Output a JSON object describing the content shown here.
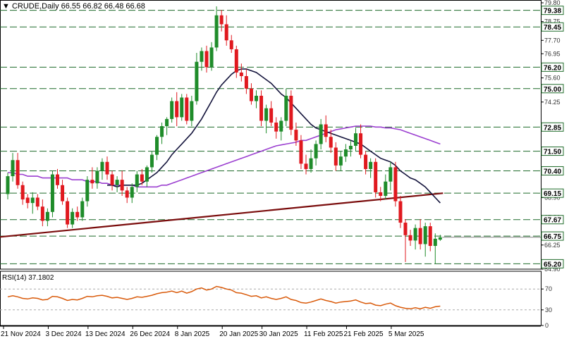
{
  "header": {
    "arrow": "▼",
    "symbol": "CRUDE,Daily",
    "ohlc": "66.55 66.82 66.48 66.68"
  },
  "rsi_header": {
    "label": "RSI(14) 37.1802"
  },
  "chart_data": [
    {
      "type": "candlestick",
      "symbol": "CRUDE",
      "timeframe": "Daily",
      "open": 66.55,
      "high": 66.82,
      "low": 66.48,
      "close": 66.68,
      "ylim": [
        64.9,
        79.8
      ],
      "y_tick_labels": [
        79.8,
        78.75,
        77.7,
        76.95,
        75.6,
        74.25,
        72.85,
        71.55,
        70.4,
        68.9,
        67.8,
        66.25,
        64.9
      ],
      "x_tick_labels": [
        "21 Nov 2024",
        "3 Dec 2024",
        "13 Dec 2024",
        "26 Dec 2024",
        "8 Jan 2025",
        "20 Jan 2025",
        "30 Jan 2025",
        "11 Feb 2025",
        "21 Feb 2025",
        "5 Mar 2025"
      ],
      "level_labels": [
        "79.38",
        "78.45",
        "76.20",
        "75.00",
        "72.85",
        "71.50",
        "70.40",
        "69.15",
        "67.67",
        "66.75",
        "65.20"
      ],
      "colors": {
        "up": "#1f8c2a",
        "down": "#e0191f",
        "sma_fast": "#14143c",
        "sma_slow": "#9b3fd0",
        "trendline": "#7a0c0c",
        "level": "#1f6b2a"
      },
      "trendline": {
        "from": 66.7,
        "to": 69.15
      },
      "candles": [
        [
          69.1,
          70.3,
          68.8,
          70.1
        ],
        [
          70.1,
          71.4,
          69.8,
          71.0
        ],
        [
          71.0,
          71.4,
          69.4,
          69.6
        ],
        [
          69.6,
          69.8,
          68.5,
          68.8
        ],
        [
          68.9,
          69.1,
          68.3,
          68.6
        ],
        [
          68.6,
          69.2,
          68.0,
          68.9
        ],
        [
          68.9,
          69.1,
          68.2,
          68.4
        ],
        [
          68.4,
          68.8,
          67.3,
          67.6
        ],
        [
          67.6,
          68.3,
          67.3,
          68.1
        ],
        [
          68.1,
          70.4,
          67.8,
          70.2
        ],
        [
          70.2,
          70.5,
          69.4,
          69.6
        ],
        [
          69.6,
          69.9,
          68.5,
          68.7
        ],
        [
          68.7,
          68.9,
          67.2,
          67.4
        ],
        [
          67.4,
          68.3,
          67.2,
          68.1
        ],
        [
          68.1,
          68.4,
          67.6,
          67.8
        ],
        [
          67.8,
          68.9,
          67.6,
          68.7
        ],
        [
          68.7,
          70.1,
          68.4,
          69.9
        ],
        [
          69.9,
          70.6,
          69.4,
          69.7
        ],
        [
          69.7,
          70.6,
          69.4,
          70.4
        ],
        [
          70.4,
          71.1,
          69.9,
          70.9
        ],
        [
          70.9,
          71.2,
          69.9,
          70.2
        ],
        [
          70.2,
          70.4,
          69.3,
          69.6
        ],
        [
          69.6,
          70.1,
          69.2,
          69.9
        ],
        [
          69.9,
          70.4,
          69.0,
          69.3
        ],
        [
          69.3,
          69.5,
          68.6,
          68.9
        ],
        [
          68.9,
          69.7,
          68.6,
          69.5
        ],
        [
          69.5,
          70.4,
          69.2,
          70.2
        ],
        [
          70.2,
          70.5,
          69.6,
          69.8
        ],
        [
          69.8,
          70.7,
          69.5,
          70.6
        ],
        [
          70.6,
          71.5,
          70.3,
          71.3
        ],
        [
          71.3,
          72.4,
          71.0,
          72.3
        ],
        [
          72.3,
          73.1,
          71.9,
          72.9
        ],
        [
          72.9,
          73.4,
          72.4,
          73.3
        ],
        [
          73.3,
          74.5,
          73.1,
          74.3
        ],
        [
          74.3,
          74.8,
          72.9,
          73.4
        ],
        [
          73.4,
          74.7,
          73.2,
          74.5
        ],
        [
          74.5,
          74.7,
          73.0,
          73.2
        ],
        [
          73.2,
          74.6,
          72.9,
          74.3
        ],
        [
          74.3,
          77.0,
          74.1,
          76.5
        ],
        [
          76.5,
          77.3,
          76.0,
          77.1
        ],
        [
          77.1,
          77.4,
          75.9,
          76.2
        ],
        [
          76.2,
          77.6,
          76.0,
          77.3
        ],
        [
          77.3,
          79.6,
          77.1,
          79.1
        ],
        [
          79.1,
          79.4,
          78.2,
          78.6
        ],
        [
          78.6,
          79.1,
          77.4,
          77.7
        ],
        [
          77.7,
          78.0,
          77.0,
          77.2
        ],
        [
          77.2,
          77.4,
          75.6,
          75.9
        ],
        [
          75.9,
          76.4,
          75.4,
          75.7
        ],
        [
          75.7,
          76.1,
          74.7,
          75.0
        ],
        [
          75.0,
          75.3,
          74.1,
          74.3
        ],
        [
          74.3,
          74.9,
          73.9,
          74.6
        ],
        [
          74.6,
          74.9,
          72.9,
          73.2
        ],
        [
          73.2,
          74.1,
          72.5,
          73.9
        ],
        [
          73.9,
          74.3,
          72.9,
          73.1
        ],
        [
          73.1,
          73.4,
          72.2,
          72.6
        ],
        [
          72.6,
          73.4,
          72.1,
          73.2
        ],
        [
          73.2,
          75.0,
          72.9,
          74.6
        ],
        [
          74.6,
          74.9,
          72.4,
          72.7
        ],
        [
          72.7,
          73.1,
          71.8,
          72.1
        ],
        [
          72.1,
          72.4,
          70.5,
          70.8
        ],
        [
          70.8,
          71.3,
          70.2,
          70.5
        ],
        [
          70.5,
          71.6,
          70.3,
          71.1
        ],
        [
          71.1,
          72.1,
          70.7,
          71.9
        ],
        [
          71.9,
          73.3,
          71.6,
          73.0
        ],
        [
          73.0,
          73.5,
          72.0,
          72.3
        ],
        [
          72.3,
          72.7,
          71.4,
          71.7
        ],
        [
          71.7,
          72.0,
          70.4,
          70.7
        ],
        [
          70.7,
          71.5,
          70.4,
          71.2
        ],
        [
          71.2,
          71.9,
          70.9,
          71.6
        ],
        [
          71.6,
          72.1,
          71.2,
          71.8
        ],
        [
          71.8,
          72.8,
          71.5,
          72.5
        ],
        [
          72.5,
          73.0,
          71.1,
          71.3
        ],
        [
          71.3,
          71.5,
          70.2,
          70.5
        ],
        [
          70.5,
          71.1,
          70.0,
          70.9
        ],
        [
          70.9,
          71.1,
          68.9,
          69.2
        ],
        [
          69.2,
          69.5,
          68.7,
          69.0
        ],
        [
          69.0,
          70.2,
          68.8,
          69.8
        ],
        [
          69.8,
          70.9,
          69.3,
          70.6
        ],
        [
          70.6,
          70.9,
          68.4,
          68.7
        ],
        [
          68.7,
          69.0,
          67.2,
          67.5
        ],
        [
          67.5,
          67.7,
          65.3,
          66.8
        ],
        [
          66.8,
          67.1,
          66.2,
          66.5
        ],
        [
          66.5,
          67.4,
          66.0,
          67.2
        ],
        [
          67.2,
          67.7,
          66.0,
          66.3
        ],
        [
          66.3,
          67.5,
          65.6,
          67.3
        ],
        [
          67.3,
          67.5,
          65.9,
          66.2
        ],
        [
          66.2,
          66.9,
          65.2,
          66.6
        ],
        [
          66.55,
          66.82,
          66.48,
          66.68
        ]
      ],
      "sma_fast": [
        null,
        null,
        null,
        null,
        null,
        null,
        null,
        null,
        null,
        null,
        null,
        null,
        null,
        null,
        null,
        null,
        null,
        null,
        null,
        null,
        69.6,
        69.6,
        69.5,
        69.6,
        69.6,
        69.6,
        69.6,
        69.7,
        69.9,
        70.1,
        70.3,
        70.6,
        70.9,
        71.3,
        71.6,
        71.9,
        72.2,
        72.5,
        72.9,
        73.3,
        73.8,
        74.3,
        74.8,
        75.2,
        75.5,
        75.8,
        76.0,
        76.1,
        76.1,
        76.0,
        75.9,
        75.7,
        75.5,
        75.3,
        75.0,
        74.7,
        74.5,
        74.2,
        73.9,
        73.6,
        73.3,
        73.0,
        72.8,
        72.7,
        72.6,
        72.5,
        72.4,
        72.3,
        72.2,
        72.1,
        72.0,
        71.9,
        71.7,
        71.5,
        71.3,
        71.1,
        71.0,
        70.9,
        70.7,
        70.4,
        70.2,
        70.0,
        69.9,
        69.7,
        69.5,
        69.2,
        68.9,
        68.6
      ],
      "sma_slow": [
        70.3,
        70.3,
        70.2,
        70.2,
        70.1,
        70.1,
        70.1,
        70.0,
        70.0,
        70.0,
        70.0,
        70.0,
        70.0,
        69.9,
        69.9,
        69.9,
        69.8,
        69.8,
        69.8,
        69.7,
        69.7,
        69.6,
        69.6,
        69.6,
        69.6,
        69.6,
        69.5,
        69.5,
        69.5,
        69.5,
        69.5,
        69.6,
        69.6,
        69.7,
        69.8,
        69.9,
        70.0,
        70.1,
        70.2,
        70.3,
        70.4,
        70.5,
        70.6,
        70.7,
        70.8,
        70.9,
        71.0,
        71.1,
        71.2,
        71.3,
        71.4,
        71.5,
        71.6,
        71.7,
        71.8,
        71.85,
        71.9,
        71.95,
        72.0,
        72.1,
        72.1,
        72.2,
        72.3,
        72.4,
        72.5,
        72.6,
        72.7,
        72.75,
        72.8,
        72.85,
        72.9,
        72.9,
        72.9,
        72.9,
        72.85,
        72.85,
        72.8,
        72.8,
        72.75,
        72.7,
        72.6,
        72.5,
        72.4,
        72.3,
        72.2,
        72.1,
        72.0,
        71.9
      ],
      "sma_fast_start_index": 20
    },
    {
      "type": "line",
      "name": "RSI(14)",
      "latest": 37.1802,
      "ylim": [
        0,
        100
      ],
      "y_tick_labels": [
        70,
        30,
        0
      ],
      "levels": [
        70,
        30
      ],
      "color": "#d95a0a",
      "values": [
        55,
        57,
        55,
        52,
        51,
        53,
        52,
        49,
        50,
        56,
        55,
        52,
        48,
        50,
        49,
        52,
        56,
        55,
        57,
        58,
        56,
        53,
        54,
        52,
        50,
        52,
        55,
        54,
        56,
        58,
        61,
        63,
        64,
        66,
        63,
        66,
        62,
        65,
        70,
        72,
        68,
        70,
        75,
        73,
        70,
        68,
        63,
        62,
        59,
        56,
        57,
        53,
        55,
        52,
        50,
        52,
        55,
        50,
        48,
        44,
        43,
        45,
        48,
        51,
        48,
        46,
        43,
        45,
        46,
        47,
        49,
        45,
        42,
        43,
        39,
        38,
        41,
        43,
        38,
        35,
        33,
        32,
        34,
        32,
        35,
        33,
        36,
        37.18
      ]
    }
  ]
}
